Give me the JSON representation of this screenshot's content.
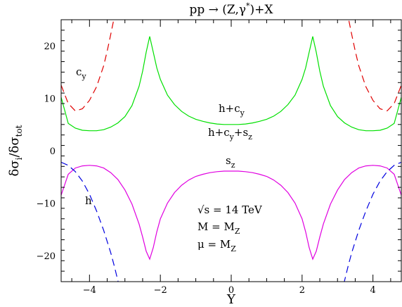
{
  "chart_data": {
    "type": "line",
    "title": "pp → (Z,γ*)+X",
    "xlabel": "Y",
    "ylabel": "δσi/δσtot",
    "xlim": [
      -4.8,
      4.8
    ],
    "ylim": [
      -25,
      25
    ],
    "x_ticks": [
      -4,
      -2,
      0,
      2,
      4
    ],
    "y_ticks": [
      -20,
      -10,
      0,
      10,
      20
    ],
    "x_tick_labels": [
      "−4",
      "−2",
      "0",
      "2",
      "4"
    ],
    "y_tick_labels": [
      "−20",
      "−10",
      "0",
      "10",
      "20"
    ],
    "grid": false,
    "annotations": [
      "√s = 14 TeV",
      "M = MZ",
      "μ = MZ"
    ],
    "series": [
      {
        "name": "h+cy",
        "color": "#00e000",
        "style": "solid",
        "x": [
          -4.8,
          -4.6,
          -4.4,
          -4.2,
          -4.0,
          -3.8,
          -3.6,
          -3.4,
          -3.2,
          -3.0,
          -2.8,
          -2.6,
          -2.5,
          -2.4,
          -2.3,
          -2.2,
          -2.1,
          -2.0,
          -1.8,
          -1.6,
          -1.4,
          -1.2,
          -1.0,
          -0.8,
          -0.6,
          -0.4,
          -0.2,
          0.0,
          0.2,
          0.4,
          0.6,
          0.8,
          1.0,
          1.2,
          1.4,
          1.6,
          1.8,
          2.0,
          2.1,
          2.2,
          2.3,
          2.4,
          2.5,
          2.6,
          2.8,
          3.0,
          3.2,
          3.4,
          3.6,
          3.8,
          4.0,
          4.2,
          4.4,
          4.6,
          4.8
        ],
        "y": [
          10.2,
          5.2,
          4.3,
          3.9,
          3.8,
          3.8,
          4.0,
          4.5,
          5.3,
          6.5,
          8.6,
          12.3,
          15.2,
          18.8,
          21.8,
          18.8,
          15.8,
          13.6,
          10.6,
          8.8,
          7.5,
          6.6,
          6.0,
          5.6,
          5.3,
          5.1,
          5.0,
          5.0,
          5.0,
          5.1,
          5.3,
          5.6,
          6.0,
          6.6,
          7.5,
          8.8,
          10.6,
          13.6,
          15.8,
          18.8,
          21.8,
          18.8,
          15.2,
          12.3,
          8.6,
          6.5,
          5.3,
          4.5,
          4.0,
          3.8,
          3.8,
          3.9,
          4.3,
          5.2,
          10.2
        ]
      },
      {
        "name": "cy",
        "color": "#e00000",
        "style": "dashed",
        "x": [
          -4.8,
          -4.6,
          -4.4,
          -4.2,
          -4.0,
          -3.8,
          -3.6,
          -3.5,
          -3.4,
          -3.3,
          -3.2,
          3.2,
          3.3,
          3.4,
          3.5,
          3.6,
          3.8,
          4.0,
          4.2,
          4.4,
          4.6,
          4.8
        ],
        "y": [
          12.5,
          9.0,
          7.6,
          8.0,
          9.6,
          12.2,
          16.2,
          19.0,
          22.2,
          25.5,
          29.0,
          29.0,
          25.5,
          22.2,
          19.0,
          16.2,
          12.2,
          9.6,
          8.0,
          7.6,
          9.0,
          12.5
        ]
      },
      {
        "name": "h+cy+sz",
        "color": "#000000",
        "style": "solid",
        "x": [
          -4.8,
          4.8
        ],
        "y": [
          1.0,
          1.0
        ]
      },
      {
        "name": "sz",
        "color": "#e000e0",
        "style": "solid",
        "x": [
          -4.8,
          -4.6,
          -4.4,
          -4.2,
          -4.0,
          -3.8,
          -3.6,
          -3.4,
          -3.2,
          -3.0,
          -2.8,
          -2.6,
          -2.5,
          -2.4,
          -2.3,
          -2.2,
          -2.1,
          -2.0,
          -1.8,
          -1.6,
          -1.4,
          -1.2,
          -1.0,
          -0.8,
          -0.6,
          -0.4,
          -0.2,
          0.0,
          0.2,
          0.4,
          0.6,
          0.8,
          1.0,
          1.2,
          1.4,
          1.6,
          1.8,
          2.0,
          2.1,
          2.2,
          2.3,
          2.4,
          2.5,
          2.6,
          2.8,
          3.0,
          3.2,
          3.4,
          3.6,
          3.8,
          4.0,
          4.2,
          4.4,
          4.6,
          4.8
        ],
        "y": [
          -8.5,
          -4.5,
          -3.3,
          -2.9,
          -2.8,
          -2.9,
          -3.3,
          -4.2,
          -5.5,
          -7.5,
          -10.2,
          -14.0,
          -16.5,
          -19.2,
          -20.7,
          -18.5,
          -15.5,
          -13.0,
          -10.0,
          -8.0,
          -6.6,
          -5.6,
          -4.9,
          -4.5,
          -4.2,
          -4.0,
          -3.9,
          -3.9,
          -3.9,
          -4.0,
          -4.2,
          -4.5,
          -4.9,
          -5.6,
          -6.6,
          -8.0,
          -10.0,
          -13.0,
          -15.5,
          -18.5,
          -20.7,
          -19.2,
          -16.5,
          -14.0,
          -10.2,
          -7.5,
          -5.5,
          -4.2,
          -3.3,
          -2.9,
          -2.8,
          -2.9,
          -3.3,
          -4.5,
          -8.5
        ]
      },
      {
        "name": "h",
        "color": "#0000e0",
        "style": "dashed",
        "x": [
          -4.8,
          -4.6,
          -4.4,
          -4.2,
          -4.0,
          -3.8,
          -3.6,
          -3.4,
          -3.3,
          -3.2,
          -3.1,
          3.1,
          3.2,
          3.3,
          3.4,
          3.6,
          3.8,
          4.0,
          4.2,
          4.4,
          4.6,
          4.8
        ],
        "y": [
          -2.2,
          -2.8,
          -4.0,
          -5.8,
          -8.3,
          -11.5,
          -15.2,
          -19.5,
          -22.0,
          -24.8,
          -27.5,
          -27.5,
          -24.8,
          -22.0,
          -19.5,
          -15.2,
          -11.5,
          -8.3,
          -5.8,
          -4.0,
          -2.8,
          -2.2
        ]
      }
    ]
  }
}
